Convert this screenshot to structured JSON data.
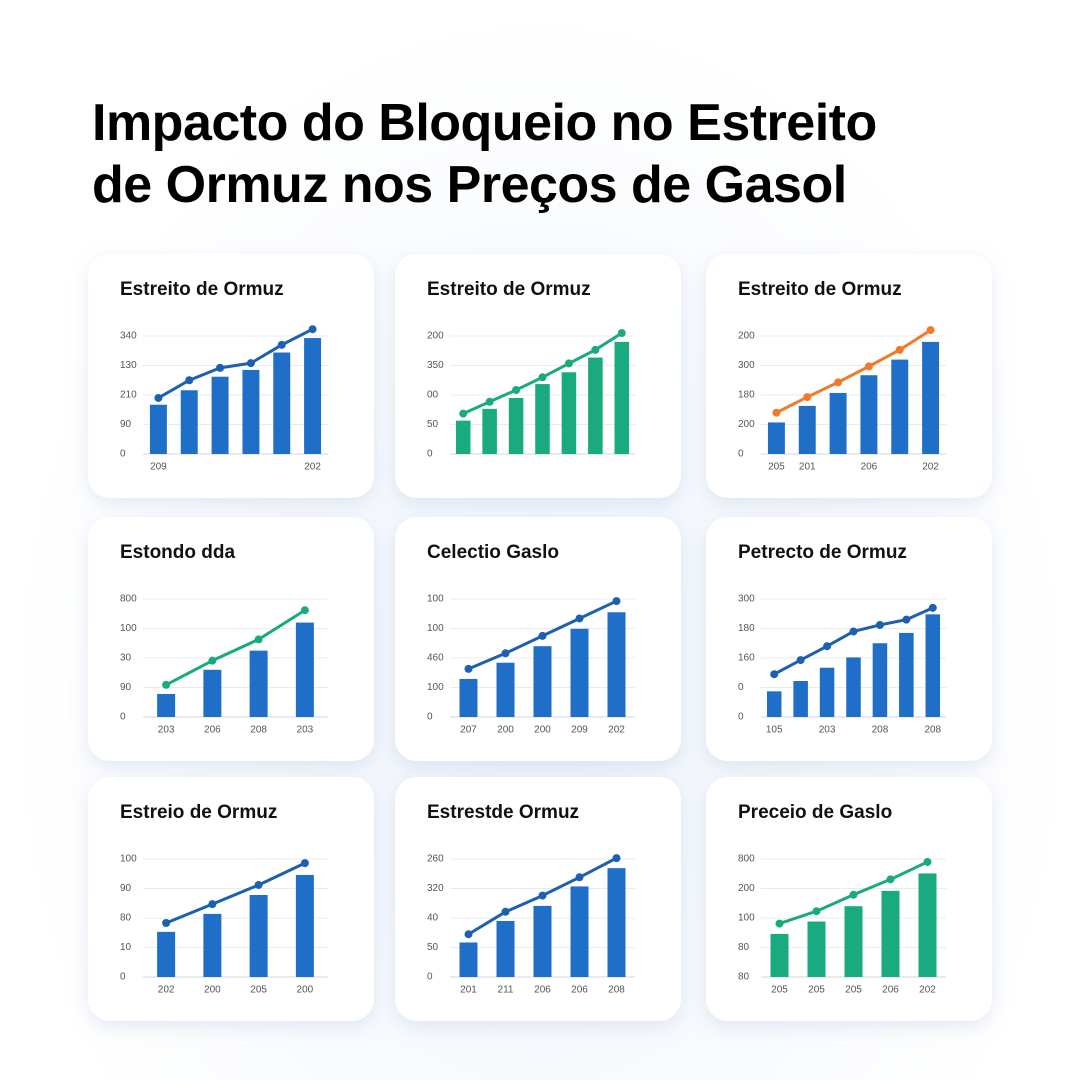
{
  "title": [
    "Impacto do Bloqueio no Estreito",
    "de Ormuz nos Preços de Gasol"
  ],
  "chart_data": [
    {
      "type": "bar",
      "title": "Estreito de Ormuz",
      "categories": [
        "209",
        null,
        null,
        null,
        null,
        "202"
      ],
      "series": [
        {
          "type": "bar",
          "color": "#1f6fc8",
          "values": [
            1.67,
            2.16,
            2.62,
            2.85,
            3.44,
            3.93
          ]
        },
        {
          "type": "line",
          "color": "#1d5fb0",
          "values": [
            1.9,
            2.5,
            2.92,
            3.08,
            3.7,
            4.23
          ]
        }
      ],
      "ylim": [
        0,
        4.6
      ],
      "yticks": [
        0,
        {
          "value": 1,
          "label": "90"
        },
        {
          "value": 2,
          "label": "210"
        },
        {
          "value": 3,
          "label": "130"
        },
        {
          "value": 4,
          "label": "340"
        }
      ],
      "grid": true
    },
    {
      "type": "bar",
      "title": "Estreito de Ormuz",
      "categories": [
        null,
        null,
        null,
        null,
        null,
        null,
        null
      ],
      "series": [
        {
          "type": "bar",
          "color": "#1aaa7f",
          "values": [
            1.13,
            1.53,
            1.9,
            2.37,
            2.77,
            3.27,
            3.8
          ]
        },
        {
          "type": "line",
          "color": "#1aaa7f",
          "values": [
            1.37,
            1.77,
            2.17,
            2.6,
            3.07,
            3.53,
            4.1
          ]
        }
      ],
      "ylim": [
        0,
        4.6
      ],
      "yticks": [
        0,
        {
          "value": 1,
          "label": "50"
        },
        {
          "value": 2,
          "label": "00"
        },
        {
          "value": 3,
          "label": "350"
        },
        {
          "value": 4,
          "label": "200"
        }
      ],
      "grid": true
    },
    {
      "type": "bar",
      "title": "Estreito de Ormuz",
      "categories": [
        "205",
        "201",
        null,
        "206",
        null,
        "202"
      ],
      "series": [
        {
          "type": "bar",
          "color": "#1f6fc8",
          "values": [
            1.07,
            1.63,
            2.07,
            2.67,
            3.2,
            3.8
          ]
        },
        {
          "type": "line",
          "color": "#f07a2a",
          "values": [
            1.4,
            1.93,
            2.43,
            2.97,
            3.53,
            4.2
          ]
        }
      ],
      "ylim": [
        0,
        4.6
      ],
      "yticks": [
        0,
        {
          "value": 1,
          "label": "200"
        },
        {
          "value": 2,
          "label": "180"
        },
        {
          "value": 3,
          "label": "300"
        },
        {
          "value": 4,
          "label": "200"
        }
      ],
      "grid": true
    },
    {
      "type": "bar",
      "title": "Estondo dda",
      "categories": [
        "203",
        "206",
        "208",
        "203"
      ],
      "series": [
        {
          "type": "bar",
          "color": "#1f6fc8",
          "values": [
            0.78,
            1.6,
            2.25,
            3.2
          ]
        },
        {
          "type": "line",
          "color": "#1aaa7f",
          "values": [
            1.09,
            1.91,
            2.63,
            3.62
          ]
        }
      ],
      "ylim": [
        0,
        4.6
      ],
      "yticks": [
        0,
        {
          "value": 1,
          "label": "90"
        },
        {
          "value": 2,
          "label": "30"
        },
        {
          "value": 3,
          "label": "100"
        },
        {
          "value": 4,
          "label": "800"
        }
      ],
      "grid": true
    },
    {
      "type": "bar",
      "title": "Celectio Gaslo",
      "categories": [
        "207",
        "200",
        "200",
        "209",
        "202"
      ],
      "series": [
        {
          "type": "bar",
          "color": "#1f6fc8",
          "values": [
            1.29,
            1.84,
            2.4,
            2.99,
            3.55
          ]
        },
        {
          "type": "line",
          "color": "#1d5fb0",
          "values": [
            1.63,
            2.16,
            2.75,
            3.34,
            3.93
          ]
        }
      ],
      "ylim": [
        0,
        4.6
      ],
      "yticks": [
        0,
        {
          "value": 1,
          "label": "100"
        },
        {
          "value": 2,
          "label": "460"
        },
        {
          "value": 3,
          "label": "100"
        },
        {
          "value": 4,
          "label": "100"
        }
      ],
      "grid": true
    },
    {
      "type": "bar",
      "title": "Petrecto de Ormuz",
      "categories": [
        "105",
        null,
        "203",
        null,
        "208",
        null,
        "208"
      ],
      "series": [
        {
          "type": "bar",
          "color": "#1f6fc8",
          "values": [
            0.87,
            1.22,
            1.67,
            2.02,
            2.5,
            2.85,
            3.48
          ]
        },
        {
          "type": "line",
          "color": "#1d5fb0",
          "values": [
            1.45,
            1.93,
            2.4,
            2.9,
            3.12,
            3.3,
            3.7
          ]
        }
      ],
      "ylim": [
        0,
        4.6
      ],
      "yticks": [
        0,
        {
          "value": 1,
          "label": "0"
        },
        {
          "value": 2,
          "label": "160"
        },
        {
          "value": 3,
          "label": "180"
        },
        {
          "value": 4,
          "label": "300"
        }
      ],
      "grid": true
    },
    {
      "type": "bar",
      "title": "Estreio de Ormuz",
      "categories": [
        "202",
        "200",
        "205",
        "200"
      ],
      "series": [
        {
          "type": "bar",
          "color": "#1f6fc8",
          "values": [
            1.53,
            2.14,
            2.78,
            3.46
          ]
        },
        {
          "type": "line",
          "color": "#1d5fb0",
          "values": [
            1.83,
            2.47,
            3.12,
            3.86
          ]
        }
      ],
      "ylim": [
        0,
        4.6
      ],
      "yticks": [
        0,
        {
          "value": 1,
          "label": "10"
        },
        {
          "value": 2,
          "label": "80"
        },
        {
          "value": 3,
          "label": "90"
        },
        {
          "value": 4,
          "label": "100"
        }
      ],
      "grid": true
    },
    {
      "type": "bar",
      "title": "Estrestde Ormuz",
      "categories": [
        "201",
        "211",
        "206",
        "206",
        "208"
      ],
      "series": [
        {
          "type": "bar",
          "color": "#1f6fc8",
          "values": [
            1.17,
            1.9,
            2.41,
            3.07,
            3.69
          ]
        },
        {
          "type": "line",
          "color": "#1d5fb0",
          "values": [
            1.45,
            2.21,
            2.76,
            3.38,
            4.03
          ]
        }
      ],
      "ylim": [
        0,
        4.6
      ],
      "yticks": [
        0,
        {
          "value": 1,
          "label": "50"
        },
        {
          "value": 2,
          "label": "40"
        },
        {
          "value": 3,
          "label": "320"
        },
        {
          "value": 4,
          "label": "260"
        }
      ],
      "grid": true
    },
    {
      "type": "bar",
      "title": "Preceio de Gaslo",
      "categories": [
        "205",
        "205",
        "205",
        "206",
        "202"
      ],
      "series": [
        {
          "type": "bar",
          "color": "#1aaa7f",
          "values": [
            1.46,
            1.88,
            2.4,
            2.92,
            3.51
          ]
        },
        {
          "type": "line",
          "color": "#1aaa7f",
          "values": [
            1.81,
            2.23,
            2.79,
            3.31,
            3.9
          ]
        }
      ],
      "ylim": [
        0,
        4.6
      ],
      "yticks": [
        {
          "value": 0,
          "label": "80"
        },
        {
          "value": 1,
          "label": "80"
        },
        {
          "value": 2,
          "label": "100"
        },
        {
          "value": 3,
          "label": "200"
        },
        {
          "value": 4,
          "label": "800"
        }
      ],
      "grid": true
    }
  ]
}
